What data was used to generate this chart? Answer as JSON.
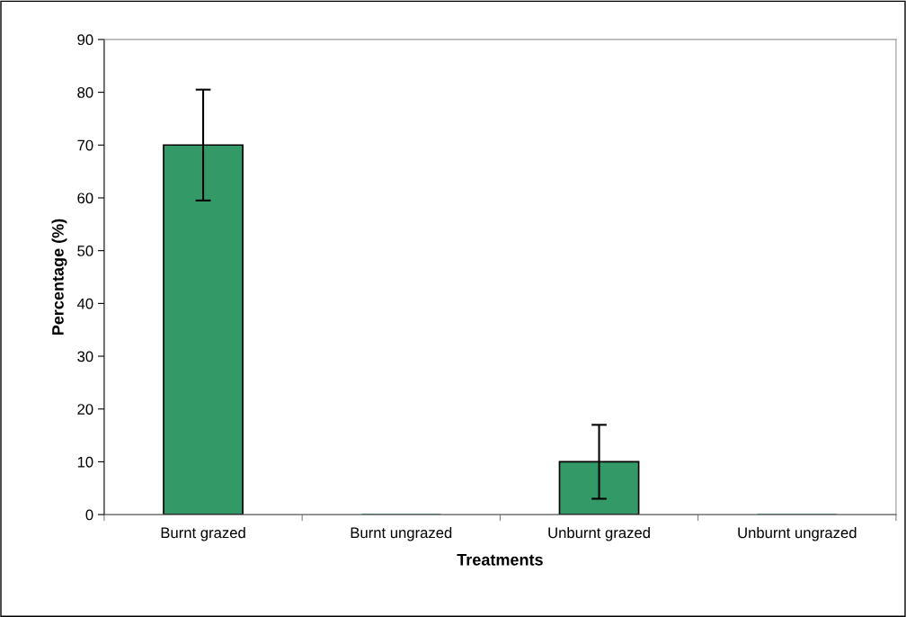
{
  "chart_data": {
    "type": "bar",
    "xlabel": "Treatments",
    "ylabel": "Percentage (%)",
    "categories": [
      "Burnt grazed",
      "Burnt ungrazed",
      "Unburnt grazed",
      "Unburnt ungrazed"
    ],
    "values": [
      70,
      0,
      10,
      0
    ],
    "errors": [
      10.5,
      null,
      7,
      null
    ],
    "color": "#339966",
    "ylim": [
      0,
      90
    ],
    "yticks": [
      0,
      10,
      20,
      30,
      40,
      50,
      60,
      70,
      80,
      90
    ],
    "grid": false
  }
}
